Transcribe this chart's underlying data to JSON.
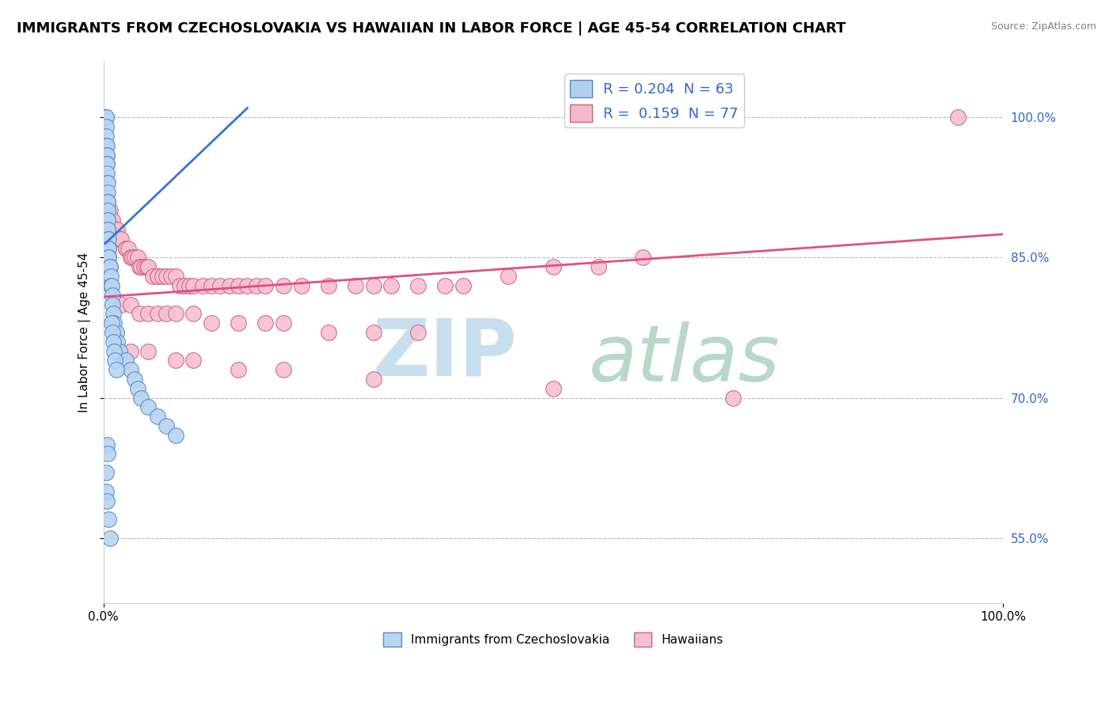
{
  "title": "IMMIGRANTS FROM CZECHOSLOVAKIA VS HAWAIIAN IN LABOR FORCE | AGE 45-54 CORRELATION CHART",
  "source": "Source: ZipAtlas.com",
  "ylabel": "In Labor Force | Age 45-54",
  "xlim": [
    0,
    1
  ],
  "ylim": [
    0.48,
    1.06
  ],
  "ytick_positions": [
    0.55,
    0.7,
    0.85,
    1.0
  ],
  "ytick_labels": [
    "55.0%",
    "70.0%",
    "85.0%",
    "100.0%"
  ],
  "xtick_positions": [
    0.0,
    1.0
  ],
  "xtick_labels": [
    "0.0%",
    "100.0%"
  ],
  "legend_entries": [
    {
      "label": "R = 0.204  N = 63",
      "color": "#afd0f0"
    },
    {
      "label": "R =  0.159  N = 77",
      "color": "#f5b8cc"
    }
  ],
  "scatter_czech": {
    "color": "#b8d4f0",
    "edgecolor": "#5588cc",
    "x": [
      0.002,
      0.002,
      0.003,
      0.003,
      0.003,
      0.003,
      0.003,
      0.004,
      0.004,
      0.004,
      0.004,
      0.004,
      0.004,
      0.004,
      0.005,
      0.005,
      0.005,
      0.005,
      0.005,
      0.005,
      0.005,
      0.005,
      0.005,
      0.005,
      0.006,
      0.006,
      0.006,
      0.006,
      0.006,
      0.007,
      0.007,
      0.008,
      0.008,
      0.009,
      0.01,
      0.01,
      0.011,
      0.012,
      0.014,
      0.015,
      0.018,
      0.025,
      0.03,
      0.035,
      0.038,
      0.042,
      0.05,
      0.06,
      0.07,
      0.08,
      0.009,
      0.01,
      0.011,
      0.012,
      0.013,
      0.014,
      0.004,
      0.005,
      0.003,
      0.003,
      0.004,
      0.006,
      0.007
    ],
    "y": [
      1.0,
      1.0,
      1.0,
      1.0,
      0.99,
      0.98,
      0.97,
      0.97,
      0.96,
      0.96,
      0.95,
      0.95,
      0.94,
      0.93,
      0.93,
      0.92,
      0.91,
      0.91,
      0.9,
      0.89,
      0.89,
      0.88,
      0.88,
      0.87,
      0.87,
      0.86,
      0.86,
      0.85,
      0.85,
      0.84,
      0.84,
      0.83,
      0.82,
      0.82,
      0.81,
      0.8,
      0.79,
      0.78,
      0.77,
      0.76,
      0.75,
      0.74,
      0.73,
      0.72,
      0.71,
      0.7,
      0.69,
      0.68,
      0.67,
      0.66,
      0.78,
      0.77,
      0.76,
      0.75,
      0.74,
      0.73,
      0.65,
      0.64,
      0.62,
      0.6,
      0.59,
      0.57,
      0.55
    ]
  },
  "scatter_hawaiian": {
    "color": "#f5c0d0",
    "edgecolor": "#d06080",
    "x": [
      0.003,
      0.005,
      0.007,
      0.01,
      0.012,
      0.015,
      0.018,
      0.02,
      0.025,
      0.025,
      0.028,
      0.03,
      0.032,
      0.035,
      0.038,
      0.04,
      0.042,
      0.045,
      0.048,
      0.05,
      0.055,
      0.06,
      0.06,
      0.065,
      0.07,
      0.075,
      0.08,
      0.085,
      0.09,
      0.095,
      0.1,
      0.11,
      0.12,
      0.13,
      0.14,
      0.15,
      0.16,
      0.17,
      0.18,
      0.2,
      0.22,
      0.25,
      0.28,
      0.3,
      0.32,
      0.35,
      0.38,
      0.4,
      0.45,
      0.5,
      0.55,
      0.6,
      0.02,
      0.03,
      0.04,
      0.05,
      0.06,
      0.07,
      0.08,
      0.1,
      0.12,
      0.15,
      0.18,
      0.2,
      0.25,
      0.3,
      0.35,
      0.03,
      0.05,
      0.08,
      0.1,
      0.15,
      0.2,
      0.3,
      0.5,
      0.7,
      0.95
    ],
    "y": [
      0.92,
      0.9,
      0.9,
      0.89,
      0.88,
      0.88,
      0.87,
      0.87,
      0.86,
      0.86,
      0.86,
      0.85,
      0.85,
      0.85,
      0.85,
      0.84,
      0.84,
      0.84,
      0.84,
      0.84,
      0.83,
      0.83,
      0.83,
      0.83,
      0.83,
      0.83,
      0.83,
      0.82,
      0.82,
      0.82,
      0.82,
      0.82,
      0.82,
      0.82,
      0.82,
      0.82,
      0.82,
      0.82,
      0.82,
      0.82,
      0.82,
      0.82,
      0.82,
      0.82,
      0.82,
      0.82,
      0.82,
      0.82,
      0.83,
      0.84,
      0.84,
      0.85,
      0.8,
      0.8,
      0.79,
      0.79,
      0.79,
      0.79,
      0.79,
      0.79,
      0.78,
      0.78,
      0.78,
      0.78,
      0.77,
      0.77,
      0.77,
      0.75,
      0.75,
      0.74,
      0.74,
      0.73,
      0.73,
      0.72,
      0.71,
      0.7,
      1.0
    ]
  },
  "trend_czech": {
    "color": "#3377cc",
    "x": [
      0.002,
      0.16
    ],
    "y": [
      0.865,
      1.01
    ]
  },
  "trend_hawaiian": {
    "color": "#e05080",
    "x": [
      0.0,
      1.0
    ],
    "y": [
      0.808,
      0.875
    ]
  },
  "watermark_zip_color": "#c8dff0",
  "watermark_atlas_color": "#b8d8c8",
  "title_fontsize": 13,
  "axis_label_fontsize": 11,
  "tick_fontsize": 11,
  "legend_fontsize": 13
}
